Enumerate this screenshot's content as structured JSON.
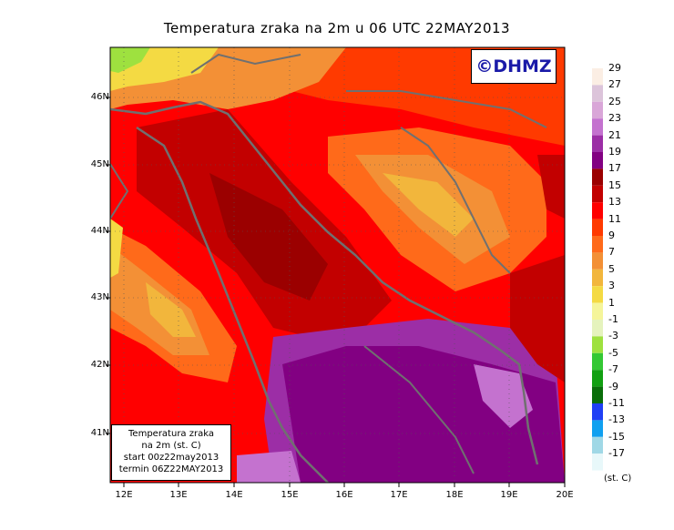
{
  "title": "Temperatura zraka na 2m u 06 UTC 22MAY2013",
  "logo": "©DHMZ",
  "lat_labels": [
    "46N",
    "45N",
    "44N",
    "43N",
    "42N",
    "41N"
  ],
  "lon_labels": [
    "12E",
    "13E",
    "14E",
    "15E",
    "16E",
    "17E",
    "18E",
    "19E",
    "20E"
  ],
  "info": {
    "line1": "Temperatura zraka",
    "line2": "na 2m (st. C)",
    "line3": "start 00z22may2013",
    "line4": "termin 06Z22MAY2013"
  },
  "colorbar": {
    "unit": "(st. C)",
    "labels": [
      "29",
      "27",
      "25",
      "23",
      "21",
      "19",
      "17",
      "15",
      "13",
      "11",
      "9",
      "7",
      "5",
      "3",
      "1",
      "-1",
      "-3",
      "-5",
      "-7",
      "-9",
      "-11",
      "-13",
      "-15",
      "-17"
    ],
    "colors": [
      "#fbeee4",
      "#dcc4da",
      "#d9a6d8",
      "#c472cf",
      "#9c2ea6",
      "#820082",
      "#9b0000",
      "#c20000",
      "#ff0000",
      "#ff3a00",
      "#ff6a1a",
      "#f39036",
      "#f2b63c",
      "#f4da43",
      "#f5f59a",
      "#e5f3bd",
      "#9ee13f",
      "#34c834",
      "#12a012",
      "#0a6e0a",
      "#2040f5",
      "#10a0f0",
      "#a0d8e6",
      "#e8f8fa"
    ]
  }
}
